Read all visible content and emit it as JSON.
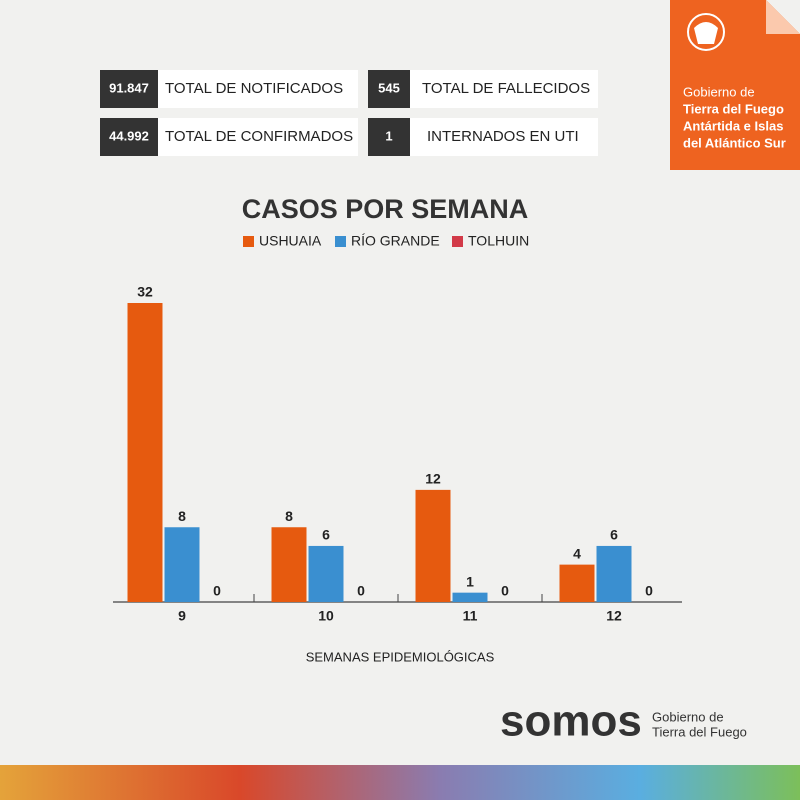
{
  "header": {
    "stats": [
      {
        "value": "91.847",
        "label": "TOTAL DE NOTIFICADOS"
      },
      {
        "value": "545",
        "label": "TOTAL DE FALLECIDOS"
      },
      {
        "value": "44.992",
        "label": "TOTAL DE CONFIRMADOS"
      },
      {
        "value": "1",
        "label": "INTERNADOS EN UTI"
      }
    ],
    "badge": [
      "Gobierno de",
      "Tierra del Fuego",
      "Antártida e Islas",
      "del Atlántico Sur"
    ]
  },
  "chart_data": {
    "type": "bar",
    "title": "CASOS POR SEMANA",
    "x_label": "SEMANAS EPIDEMIOLÓGICAS",
    "categories": [
      "9",
      "10",
      "11",
      "12"
    ],
    "series": [
      {
        "name": "USHUAIA",
        "color": "#e65a0f",
        "values": [
          32,
          8,
          12,
          4
        ]
      },
      {
        "name": "RÍO GRANDE",
        "color": "#3a8fd0",
        "values": [
          8,
          6,
          1,
          6
        ]
      },
      {
        "name": "TOLHUIN",
        "color": "#d23a48",
        "values": [
          0,
          0,
          0,
          0
        ]
      }
    ]
  },
  "footer": {
    "brand": "somos",
    "lines": [
      "Gobierno de",
      "Tierra del Fuego"
    ]
  }
}
